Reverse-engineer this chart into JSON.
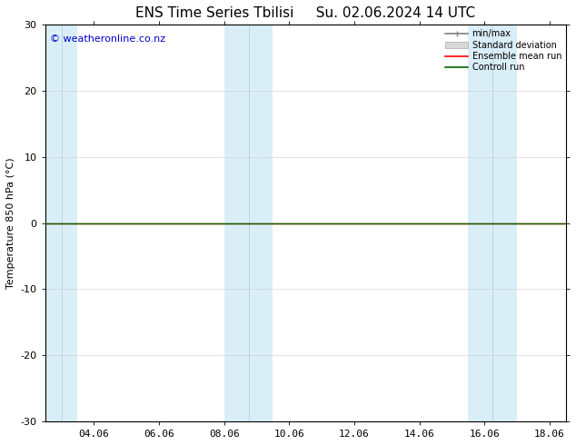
{
  "title": "ENS Time Series Tbilisi",
  "title_right": "Su. 02.06.2024 14 UTC",
  "ylabel": "Temperature 850 hPa (°C)",
  "watermark": "© weatheronline.co.nz",
  "xlim_start": 2.5,
  "xlim_end": 18.5,
  "ylim_min": -30,
  "ylim_max": 30,
  "yticks": [
    -30,
    -20,
    -10,
    0,
    10,
    20,
    30
  ],
  "xticks": [
    4,
    6,
    8,
    10,
    12,
    14,
    16,
    18
  ],
  "xtick_labels": [
    "04.06",
    "06.06",
    "08.06",
    "10.06",
    "12.06",
    "14.06",
    "16.06",
    "18.06"
  ],
  "background_color": "#ffffff",
  "plot_bg_color": "#ffffff",
  "shaded_bands": [
    {
      "x_start": 2.5,
      "x_end": 3.0,
      "color": "#daeaf6"
    },
    {
      "x_start": 3.0,
      "x_end": 3.5,
      "color": "#daeaf6"
    },
    {
      "x_start": 8.0,
      "x_end": 8.75,
      "color": "#daeaf6"
    },
    {
      "x_start": 8.75,
      "x_end": 9.5,
      "color": "#daeaf6"
    },
    {
      "x_start": 15.5,
      "x_end": 16.25,
      "color": "#daeaf6"
    },
    {
      "x_start": 16.25,
      "x_end": 17.0,
      "color": "#daeaf6"
    }
  ],
  "control_run_color": "#006400",
  "ensemble_mean_color": "#ff0000",
  "min_max_color": "#808080",
  "std_dev_color": "#c8c8c8",
  "legend_labels": [
    "min/max",
    "Standard deviation",
    "Ensemble mean run",
    "Controll run"
  ],
  "title_fontsize": 11,
  "axis_fontsize": 8,
  "tick_fontsize": 8,
  "watermark_color": "#0000cc",
  "watermark_fontsize": 8
}
